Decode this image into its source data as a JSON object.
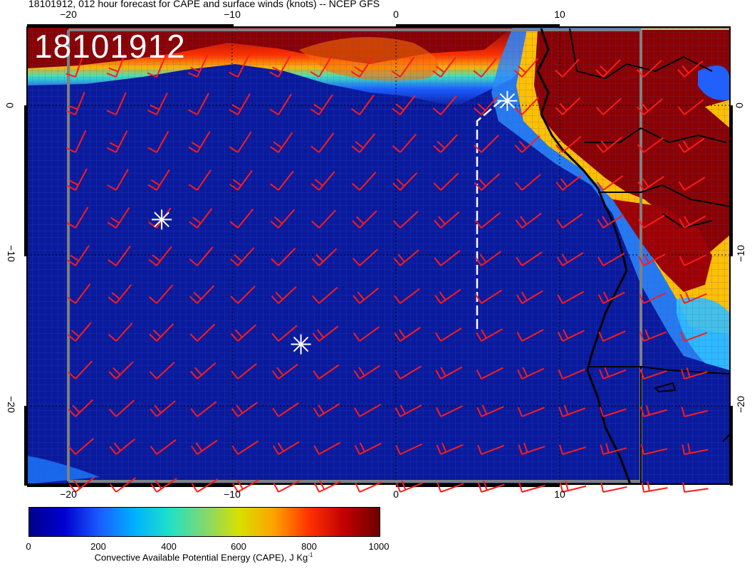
{
  "title": "18101912, 012 hour forecast for CAPE and surface winds (knots) -- NCEP GFS",
  "stamp": "18101912",
  "lon_ticks_top": [
    "−20",
    "−10",
    "0",
    "10"
  ],
  "lon_ticks_bottom": [
    "−20",
    "−10",
    "0",
    "10"
  ],
  "lat_ticks": [
    "0",
    "−10",
    "−20"
  ],
  "colorbar": {
    "ticks": [
      "0",
      "200",
      "400",
      "600",
      "800",
      "1000"
    ],
    "label": "Convective Available Potential Energy (CAPE), J Kg",
    "label_sup": "-1",
    "range": [
      0,
      1000
    ],
    "colors": [
      "#00008b",
      "#0000cd",
      "#1e5aff",
      "#00b4ff",
      "#20e0d0",
      "#8cd87c",
      "#e8e000",
      "#ff9800",
      "#ff2a00",
      "#b00000",
      "#6e0000"
    ]
  },
  "colors": {
    "ocean": "#0a1a9c",
    "land_hot": "#8b0000",
    "barb": "#ff1a1a",
    "coast": "#000000",
    "marker": "#ffffff",
    "track": "#ffffff"
  },
  "markers": [
    {
      "name": "star-marker-1",
      "lon": -14.3,
      "lat": -7.6
    },
    {
      "name": "star-marker-2",
      "lon": -5.8,
      "lat": -15.9
    },
    {
      "name": "star-marker-3",
      "lon": 6.8,
      "lat": 0.3
    }
  ]
}
